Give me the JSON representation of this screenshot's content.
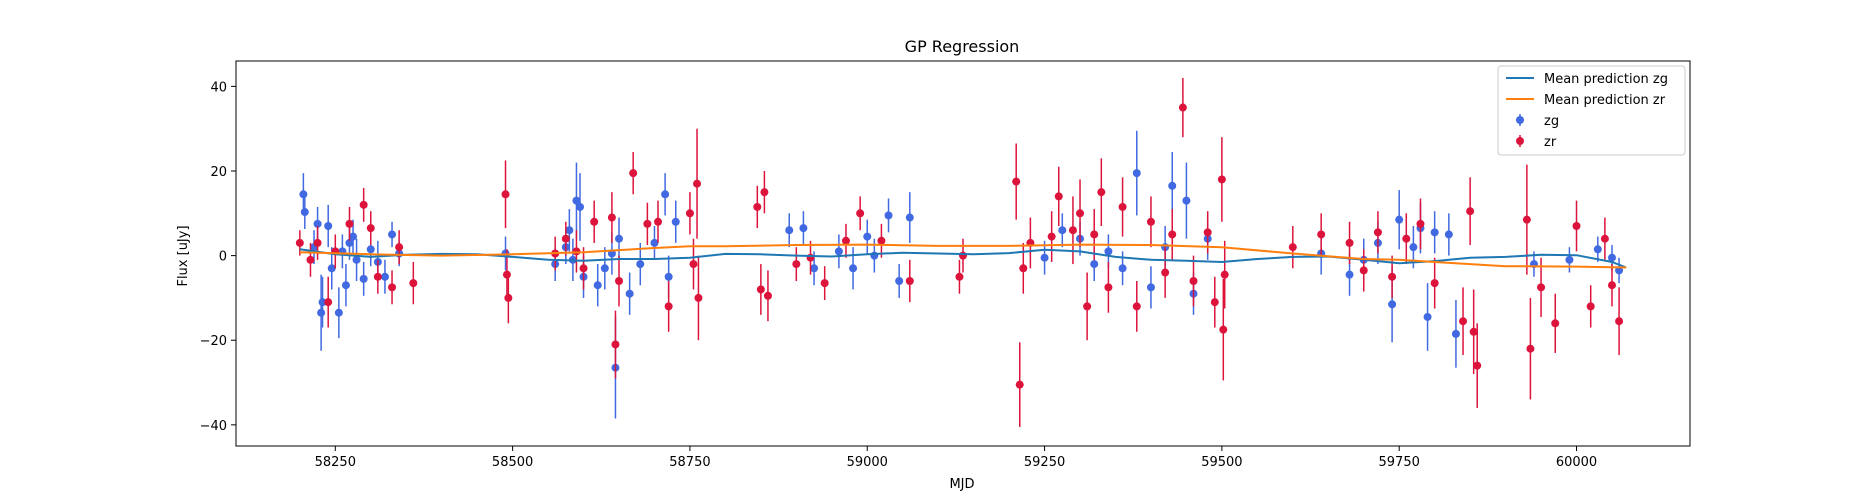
{
  "chart_data": {
    "type": "scatter",
    "title": "GP Regression",
    "xlabel": "MJD",
    "ylabel": "Flux [uJy]",
    "xlim": [
      58110,
      60160
    ],
    "ylim": [
      -45,
      46
    ],
    "x_ticks": [
      58250,
      58500,
      58750,
      59000,
      59250,
      59500,
      59750,
      60000
    ],
    "y_ticks": [
      -40,
      -20,
      0,
      20,
      40
    ],
    "grid": false,
    "legend_position": "top-right",
    "legend": [
      "Mean prediction zg",
      "Mean prediction zr",
      "zg",
      "zr"
    ],
    "colors": {
      "zg_line": "#1f77b4",
      "zr_line": "#ff7f0e",
      "zg_points": "#4169e1",
      "zr_points": "#dc143c"
    },
    "lines": [
      {
        "name": "Mean prediction zg",
        "color": "#1f77b4",
        "x": [
          58200,
          58250,
          58300,
          58350,
          58400,
          58450,
          58500,
          58550,
          58600,
          58650,
          58700,
          58750,
          58800,
          58850,
          58900,
          58950,
          59000,
          59050,
          59100,
          59150,
          59200,
          59250,
          59300,
          59350,
          59400,
          59450,
          59500,
          59550,
          59600,
          59650,
          59700,
          59750,
          59800,
          59850,
          59900,
          59950,
          60000,
          60050,
          60070
        ],
        "y": [
          1.5,
          0.3,
          -0.3,
          0.2,
          0.4,
          0.3,
          -0.3,
          -1.0,
          -1.2,
          -0.8,
          -0.8,
          -0.5,
          0.4,
          0.3,
          0.0,
          -0.2,
          0.3,
          0.7,
          0.5,
          0.3,
          0.6,
          1.4,
          1.0,
          -0.3,
          -1.0,
          -1.2,
          -1.5,
          -0.8,
          -0.3,
          -0.2,
          -1.0,
          -1.8,
          -1.3,
          -0.5,
          -0.3,
          0.2,
          0.1,
          -1.5,
          -2.8
        ]
      },
      {
        "name": "Mean prediction zr",
        "color": "#ff7f0e",
        "x": [
          58200,
          58300,
          58400,
          58500,
          58600,
          58700,
          58750,
          58800,
          58900,
          59000,
          59100,
          59200,
          59300,
          59400,
          59500,
          59600,
          59700,
          59750,
          59800,
          59900,
          60000,
          60070
        ],
        "y": [
          0.8,
          0.3,
          0.0,
          0.3,
          0.8,
          1.8,
          2.2,
          2.2,
          2.5,
          2.6,
          2.3,
          2.3,
          2.6,
          2.5,
          2.0,
          0.5,
          -0.8,
          -1.0,
          -1.5,
          -2.5,
          -2.6,
          -2.8
        ]
      }
    ],
    "series": [
      {
        "name": "zg",
        "color": "#4169e1",
        "points": [
          [
            58205,
            14.5,
            5
          ],
          [
            58207,
            10.3,
            4
          ],
          [
            58220,
            2.0,
            4
          ],
          [
            58225,
            7.5,
            4
          ],
          [
            58230,
            -13.5,
            9
          ],
          [
            58232,
            -11.0,
            6
          ],
          [
            58240,
            7.0,
            5
          ],
          [
            58245,
            -3.0,
            5
          ],
          [
            58255,
            -13.5,
            6
          ],
          [
            58260,
            1.0,
            4
          ],
          [
            58265,
            -7.0,
            5
          ],
          [
            58270,
            3.0,
            4
          ],
          [
            58275,
            4.5,
            4
          ],
          [
            58280,
            -1.0,
            5
          ],
          [
            58290,
            -5.5,
            4
          ],
          [
            58300,
            1.5,
            4
          ],
          [
            58310,
            -1.5,
            5
          ],
          [
            58320,
            -5.0,
            4
          ],
          [
            58330,
            5.0,
            3
          ],
          [
            58340,
            0.5,
            3
          ],
          [
            58490,
            0.5,
            4
          ],
          [
            58560,
            -2.0,
            4
          ],
          [
            58575,
            2.0,
            4
          ],
          [
            58580,
            6.0,
            5
          ],
          [
            58585,
            -1.0,
            5
          ],
          [
            58590,
            13.0,
            9
          ],
          [
            58595,
            11.5,
            8
          ],
          [
            58600,
            -5.0,
            5
          ],
          [
            58620,
            -7.0,
            5
          ],
          [
            58630,
            -3.0,
            5
          ],
          [
            58640,
            0.5,
            5
          ],
          [
            58645,
            -26.5,
            12
          ],
          [
            58650,
            4.0,
            5
          ],
          [
            58665,
            -9.0,
            5
          ],
          [
            58680,
            -2.0,
            5
          ],
          [
            58700,
            3.0,
            4
          ],
          [
            58715,
            14.5,
            5
          ],
          [
            58720,
            -5.0,
            5
          ],
          [
            58730,
            8.0,
            5
          ],
          [
            58890,
            6.0,
            4
          ],
          [
            58910,
            6.5,
            4
          ],
          [
            58925,
            -3.0,
            4
          ],
          [
            58960,
            1.0,
            4
          ],
          [
            58980,
            -3.0,
            5
          ],
          [
            59000,
            4.5,
            4
          ],
          [
            59010,
            0.0,
            4
          ],
          [
            59030,
            9.5,
            4
          ],
          [
            59045,
            -6.0,
            4
          ],
          [
            59060,
            9.0,
            6
          ],
          [
            59250,
            -0.5,
            4
          ],
          [
            59275,
            6.0,
            4
          ],
          [
            59300,
            4.0,
            4
          ],
          [
            59320,
            -2.0,
            4
          ],
          [
            59340,
            1.0,
            4
          ],
          [
            59360,
            -3.0,
            4
          ],
          [
            59380,
            19.5,
            10
          ],
          [
            59400,
            -7.5,
            5
          ],
          [
            59420,
            2.0,
            5
          ],
          [
            59430,
            16.5,
            8
          ],
          [
            59450,
            13.0,
            9
          ],
          [
            59460,
            -9.0,
            5
          ],
          [
            59480,
            4.0,
            5
          ],
          [
            59640,
            0.5,
            5
          ],
          [
            59680,
            -4.5,
            5
          ],
          [
            59700,
            -1.0,
            5
          ],
          [
            59720,
            3.0,
            5
          ],
          [
            59740,
            -11.5,
            9
          ],
          [
            59750,
            8.5,
            7
          ],
          [
            59770,
            2.0,
            5
          ],
          [
            59780,
            6.5,
            6
          ],
          [
            59790,
            -14.5,
            8
          ],
          [
            59800,
            5.5,
            5
          ],
          [
            59820,
            5.0,
            5
          ],
          [
            59830,
            -18.5,
            8
          ],
          [
            59940,
            -2.0,
            3
          ],
          [
            59990,
            -1.0,
            3
          ],
          [
            60030,
            1.5,
            3
          ],
          [
            60050,
            -0.5,
            3
          ],
          [
            60060,
            -3.5,
            3
          ]
        ]
      },
      {
        "name": "zr",
        "color": "#dc143c",
        "points": [
          [
            58200,
            3.0,
            3
          ],
          [
            58215,
            -1.0,
            4
          ],
          [
            58225,
            3.0,
            4
          ],
          [
            58240,
            -11.0,
            6
          ],
          [
            58250,
            1.0,
            4
          ],
          [
            58270,
            7.5,
            4
          ],
          [
            58290,
            12.0,
            4
          ],
          [
            58300,
            6.5,
            4
          ],
          [
            58310,
            -5.0,
            4
          ],
          [
            58330,
            -7.5,
            4
          ],
          [
            58340,
            2.0,
            4
          ],
          [
            58360,
            -6.5,
            5
          ],
          [
            58490,
            14.5,
            8
          ],
          [
            58492,
            -4.5,
            6
          ],
          [
            58494,
            -10.0,
            6
          ],
          [
            58560,
            0.5,
            4
          ],
          [
            58575,
            4.0,
            4
          ],
          [
            58590,
            1.0,
            5
          ],
          [
            58600,
            -3.0,
            5
          ],
          [
            58615,
            8.0,
            5
          ],
          [
            58640,
            9.0,
            6
          ],
          [
            58645,
            -21.0,
            8
          ],
          [
            58650,
            -6.0,
            6
          ],
          [
            58670,
            19.5,
            5
          ],
          [
            58690,
            7.5,
            5
          ],
          [
            58705,
            8.0,
            5
          ],
          [
            58720,
            -12.0,
            6
          ],
          [
            58750,
            10.0,
            5
          ],
          [
            58755,
            -2.0,
            6
          ],
          [
            58760,
            17.0,
            13
          ],
          [
            58762,
            -10.0,
            10
          ],
          [
            58845,
            11.5,
            5
          ],
          [
            58850,
            -8.0,
            6
          ],
          [
            58855,
            15.0,
            5
          ],
          [
            58860,
            -9.5,
            6
          ],
          [
            58900,
            -2.0,
            4
          ],
          [
            58920,
            -0.5,
            4
          ],
          [
            58940,
            -6.5,
            4
          ],
          [
            58970,
            3.5,
            4
          ],
          [
            58990,
            10.0,
            4
          ],
          [
            59020,
            3.5,
            4
          ],
          [
            59060,
            -6.0,
            5
          ],
          [
            59130,
            -5.0,
            4
          ],
          [
            59135,
            0.0,
            4
          ],
          [
            59210,
            17.5,
            9
          ],
          [
            59215,
            -30.5,
            10
          ],
          [
            59220,
            -3.0,
            6
          ],
          [
            59230,
            3.0,
            6
          ],
          [
            59260,
            4.5,
            6
          ],
          [
            59270,
            14.0,
            7
          ],
          [
            59290,
            6.0,
            8
          ],
          [
            59300,
            10.0,
            8
          ],
          [
            59310,
            -12.0,
            8
          ],
          [
            59320,
            5.0,
            6
          ],
          [
            59330,
            15.0,
            8
          ],
          [
            59340,
            -7.5,
            6
          ],
          [
            59360,
            11.5,
            7
          ],
          [
            59380,
            -12.0,
            6
          ],
          [
            59400,
            8.0,
            6
          ],
          [
            59420,
            -4.0,
            6
          ],
          [
            59430,
            5.0,
            6
          ],
          [
            59445,
            35.0,
            7
          ],
          [
            59460,
            -6.0,
            6
          ],
          [
            59480,
            5.5,
            5
          ],
          [
            59490,
            -11.0,
            6
          ],
          [
            59500,
            18.0,
            10
          ],
          [
            59502,
            -17.5,
            12
          ],
          [
            59504,
            -4.5,
            8
          ],
          [
            59600,
            2.0,
            5
          ],
          [
            59640,
            5.0,
            5
          ],
          [
            59680,
            3.0,
            5
          ],
          [
            59700,
            -3.5,
            5
          ],
          [
            59720,
            5.5,
            5
          ],
          [
            59740,
            -5.0,
            5
          ],
          [
            59760,
            4.0,
            6
          ],
          [
            59780,
            7.5,
            6
          ],
          [
            59800,
            -6.5,
            6
          ],
          [
            59840,
            -15.5,
            8
          ],
          [
            59850,
            10.5,
            8
          ],
          [
            59855,
            -18.0,
            10
          ],
          [
            59860,
            -26.0,
            10
          ],
          [
            59930,
            8.5,
            13
          ],
          [
            59935,
            -22.0,
            12
          ],
          [
            59950,
            -7.5,
            7
          ],
          [
            59970,
            -16.0,
            7
          ],
          [
            60000,
            7.0,
            6
          ],
          [
            60020,
            -12.0,
            5
          ],
          [
            60040,
            4.0,
            5
          ],
          [
            60050,
            -7.0,
            5
          ],
          [
            60060,
            -15.5,
            8
          ]
        ]
      }
    ]
  }
}
